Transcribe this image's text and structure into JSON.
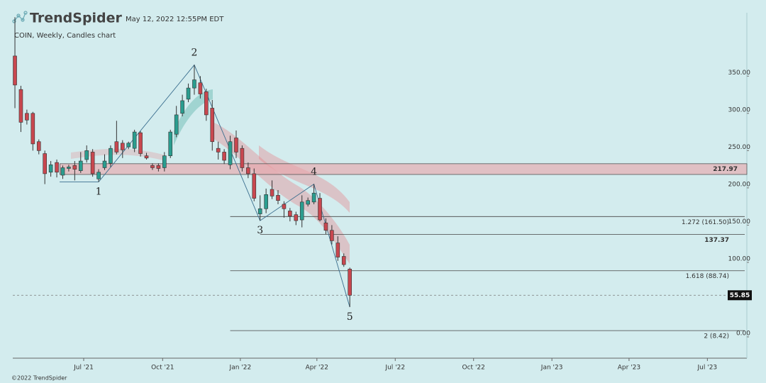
{
  "header": {
    "brand": "TrendSpider",
    "timestamp": "May 12, 2022 12:55PM EDT",
    "footer": "©2022 TrendSpider"
  },
  "chart_data": {
    "type": "candlestick",
    "title": "COIN, Weekly, Candles chart",
    "up_color": "#2a9d8f",
    "down_color": "#c8474f",
    "x": [
      0,
      1,
      2,
      3,
      4,
      5,
      6,
      7,
      8,
      9,
      10,
      11,
      12,
      13,
      14,
      15,
      16,
      17,
      18,
      19,
      20,
      21,
      22,
      23,
      24,
      25,
      26,
      27,
      28,
      29,
      30,
      31,
      32,
      33,
      34,
      35,
      36,
      37,
      38,
      39,
      40,
      41,
      42,
      43,
      44,
      45,
      46,
      47,
      48,
      49,
      50,
      51,
      52,
      53,
      54,
      55,
      56
    ],
    "open": [
      377,
      332,
      300,
      300,
      262,
      246,
      221,
      234,
      217,
      226,
      230,
      223,
      238,
      248,
      212,
      227,
      233,
      262,
      260,
      255,
      253,
      274,
      243,
      230,
      230,
      227,
      243,
      272,
      300,
      319,
      334,
      341,
      329,
      307,
      253,
      248,
      231,
      267,
      253,
      227,
      219,
      165,
      172,
      198,
      190,
      178,
      169,
      164,
      157,
      178,
      181,
      186,
      153,
      143,
      126,
      108,
      91
    ],
    "high": [
      429,
      337,
      305,
      302,
      265,
      250,
      236,
      238,
      230,
      231,
      236,
      248,
      257,
      252,
      225,
      245,
      257,
      290,
      264,
      262,
      278,
      276,
      247,
      233,
      233,
      248,
      278,
      310,
      325,
      340,
      365,
      350,
      333,
      318,
      262,
      252,
      270,
      277,
      257,
      234,
      226,
      190,
      199,
      210,
      197,
      182,
      173,
      168,
      190,
      187,
      205,
      193,
      159,
      150,
      135,
      112,
      93
    ],
    "low": [
      307,
      275,
      285,
      250,
      245,
      205,
      215,
      214,
      212,
      222,
      210,
      220,
      234,
      215,
      208,
      224,
      228,
      245,
      240,
      252,
      248,
      242,
      238,
      224,
      222,
      222,
      240,
      268,
      296,
      315,
      325,
      320,
      290,
      250,
      238,
      232,
      225,
      240,
      222,
      213,
      182,
      156,
      166,
      185,
      178,
      160,
      155,
      150,
      147,
      175,
      178,
      155,
      138,
      124,
      102,
      94,
      40
    ],
    "close": [
      338,
      288,
      291,
      259,
      250,
      219,
      231,
      221,
      227,
      228,
      225,
      236,
      250,
      219,
      221,
      236,
      253,
      248,
      251,
      260,
      275,
      246,
      240,
      227,
      226,
      243,
      275,
      298,
      317,
      334,
      345,
      326,
      298,
      262,
      248,
      237,
      262,
      248,
      227,
      219,
      186,
      172,
      191,
      189,
      183,
      172,
      162,
      156,
      181,
      183,
      193,
      157,
      143,
      129,
      107,
      97,
      55.85
    ],
    "last_price": {
      "value": 55.85,
      "label": "55.85"
    },
    "xlim": [
      -0.36,
      122.4
    ],
    "ylim": [
      -28.6,
      435
    ],
    "xticks": [
      {
        "value": 11.5,
        "label": "Jul '21"
      },
      {
        "value": 24.7,
        "label": "Oct '21"
      },
      {
        "value": 37.7,
        "label": "Jan '22"
      },
      {
        "value": 50.5,
        "label": "Apr '22"
      },
      {
        "value": 63.6,
        "label": "Jul '22"
      },
      {
        "value": 76.7,
        "label": "Oct '22"
      },
      {
        "value": 89.8,
        "label": "Jan '23"
      },
      {
        "value": 102.7,
        "label": "Apr '23"
      },
      {
        "value": 115.8,
        "label": "Jul '23"
      }
    ],
    "yticks": [
      {
        "value": 0,
        "label": "0.00"
      },
      {
        "value": 100,
        "label": "100.00"
      },
      {
        "value": 150,
        "label": "150.00"
      },
      {
        "value": 200,
        "label": "200.00"
      },
      {
        "value": 250,
        "label": "250.00"
      },
      {
        "value": 300,
        "label": "300.00"
      },
      {
        "value": 350,
        "label": "350.00"
      }
    ],
    "zone": {
      "label": "217.97",
      "low": 217.97,
      "high": 232.4,
      "x0": 8
    },
    "levels": [
      {
        "label": "1.272 (161.50)",
        "value": 161.5,
        "x0": 36
      },
      {
        "label": "137.37",
        "value": 137.37,
        "x0": 41
      },
      {
        "label": "1.618 (88.74)",
        "value": 88.74,
        "x0": 36
      },
      {
        "label": "2 (8.42)",
        "value": 8.42,
        "x0": 36
      }
    ],
    "waves": [
      {
        "label": "1",
        "x": 14,
        "value": 208
      },
      {
        "label": "2",
        "x": 30,
        "value": 365
      },
      {
        "label": "3",
        "x": 41,
        "value": 156
      },
      {
        "label": "4",
        "x": 50,
        "value": 205
      },
      {
        "label": "5",
        "x": 56,
        "value": 40
      }
    ]
  }
}
